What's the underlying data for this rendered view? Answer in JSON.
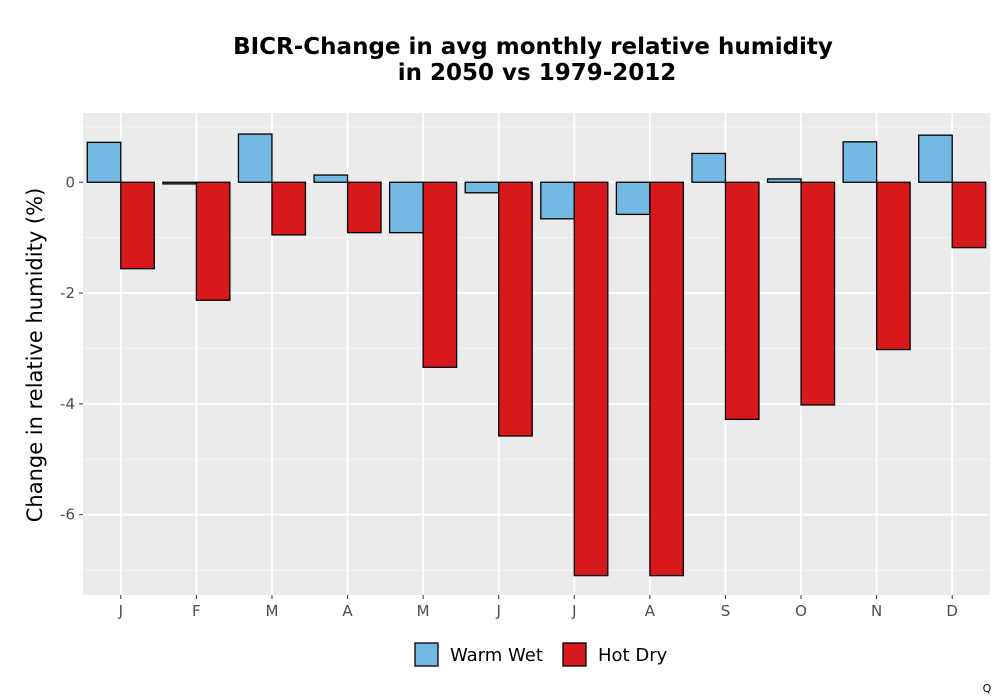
{
  "chart_data": {
    "type": "bar",
    "title": [
      "BICR-Change in avg monthly relative humidity",
      "in 2050 vs 1979-2012"
    ],
    "xlabel": "",
    "ylabel": "Change in relative humidity (%)",
    "categories": [
      "J",
      "F",
      "M",
      "A",
      "M",
      "J",
      "J",
      "A",
      "S",
      "O",
      "N",
      "D"
    ],
    "series": [
      {
        "name": "Warm Wet",
        "color": "#74b9e3",
        "values": [
          0.72,
          -0.03,
          0.87,
          0.13,
          -0.91,
          -0.19,
          -0.66,
          -0.58,
          0.52,
          0.06,
          0.73,
          0.85
        ]
      },
      {
        "name": "Hot Dry",
        "color": "#d7191c",
        "values": [
          -1.56,
          -2.13,
          -0.95,
          -0.91,
          -3.34,
          -4.58,
          -7.1,
          -7.1,
          -4.28,
          -4.02,
          -3.02,
          -1.18
        ]
      }
    ],
    "ylim": [
      -7.45,
      1.25
    ],
    "yticks": [
      0,
      -2,
      -4,
      -6
    ],
    "ytick_labels": [
      "0",
      "-2",
      "-4",
      "-6"
    ],
    "grid": true,
    "legend_position": "bottom"
  },
  "corner_mark": "Q"
}
